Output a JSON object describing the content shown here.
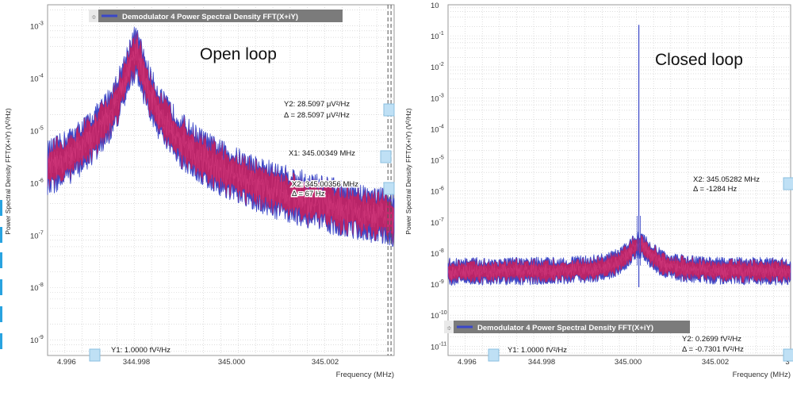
{
  "chart_data": [
    {
      "type": "line",
      "id": "open-loop",
      "overlay_label": "Open loop",
      "legend": "Demodulator 4 Power Spectral Density FFT(X+iY)",
      "ylabel": "Power Spectral Density FFT(X+iY) (V²/Hz)",
      "xlabel": "Frequency (MHz)",
      "xlim": [
        344.9956,
        345.00345
      ],
      "xticks": [
        "4.996",
        "344.998",
        "345.000",
        "345.002"
      ],
      "ylim_log10": [
        -9.3,
        -2.6
      ],
      "yticks": [
        {
          "base": "10",
          "exp": "-3",
          "value": -3
        },
        {
          "base": "10",
          "exp": "-4",
          "value": -4
        },
        {
          "base": "10",
          "exp": "-5",
          "value": -5
        },
        {
          "base": "10",
          "exp": "-6",
          "value": -6
        },
        {
          "base": "10",
          "exp": "-7",
          "value": -7
        },
        {
          "base": "10",
          "exp": "-8",
          "value": -8
        },
        {
          "base": "10",
          "exp": "-9",
          "value": -9
        }
      ],
      "model": {
        "kind": "lorentzian",
        "center": 344.99758,
        "peak_log10": -3.55,
        "gamma": 0.00016,
        "floor_log10": -8.55,
        "noise_spread_log10": 0.55
      },
      "cursors": {
        "y2": {
          "label": "Y2: 28.5097 μV²/Hz",
          "delta": "Δ = 28.5097 μV²/Hz",
          "value_log10": -4.545
        },
        "x1": {
          "label": "X1: 345.00349 MHz",
          "value": 345.00331
        },
        "x2": {
          "label": "X2: 345.00356 MHz",
          "delta": "Δ = 67 Hz",
          "value": 345.00338
        },
        "y1": {
          "label": "Y1: 1.0000 fV²/Hz"
        }
      },
      "grid": true,
      "colors": {
        "band": "#b82468",
        "edge": "#3a47c8",
        "legend_bg": "#7b7b7b"
      }
    },
    {
      "type": "line",
      "id": "closed-loop",
      "overlay_label": "Closed loop",
      "legend": "Demodulator 4 Power Spectral Density FFT(X+iY)",
      "ylabel": "Power Spectral Density FFT(X+iY) (V²/Hz)",
      "xlabel": "Frequency (MHz)",
      "xlim": [
        344.9956,
        345.0035
      ],
      "xticks": [
        "4.996",
        "344.998",
        "345.000",
        "345.002",
        "3"
      ],
      "ylim_log10": [
        -11.3,
        0
      ],
      "yticks": [
        {
          "base": "10",
          "exp": "",
          "value": 0
        },
        {
          "base": "10",
          "exp": "-1",
          "value": -1
        },
        {
          "base": "10",
          "exp": "-2",
          "value": -2
        },
        {
          "base": "10",
          "exp": "-3",
          "value": -3
        },
        {
          "base": "10",
          "exp": "-4",
          "value": -4
        },
        {
          "base": "10",
          "exp": "-5",
          "value": -5
        },
        {
          "base": "10",
          "exp": "-6",
          "value": -6
        },
        {
          "base": "10",
          "exp": "-7",
          "value": -7
        },
        {
          "base": "10",
          "exp": "-8",
          "value": -8
        },
        {
          "base": "10",
          "exp": "-9",
          "value": -9
        },
        {
          "base": "10",
          "exp": "-10",
          "value": -10
        },
        {
          "base": "10",
          "exp": "-11",
          "value": -11
        }
      ],
      "model": {
        "kind": "spike",
        "center": 345.0,
        "floor_log10": -8.6,
        "bump_log10": -7.8,
        "spike_log10": -0.65,
        "noise_spread_log10": 0.45
      },
      "cursors": {
        "x2": {
          "label": "X2: 345.05282 MHz",
          "delta": "Δ = -1284 Hz"
        },
        "y2": {
          "label": "Y2: 0.2699 fV²/Hz",
          "delta": "Δ = -0.7301 fV²/Hz"
        },
        "y1": {
          "label": "Y1: 1.0000 fV²/Hz"
        }
      },
      "grid": true,
      "colors": {
        "band": "#b82468",
        "edge": "#3a47c8",
        "legend_bg": "#7b7b7b"
      }
    }
  ]
}
